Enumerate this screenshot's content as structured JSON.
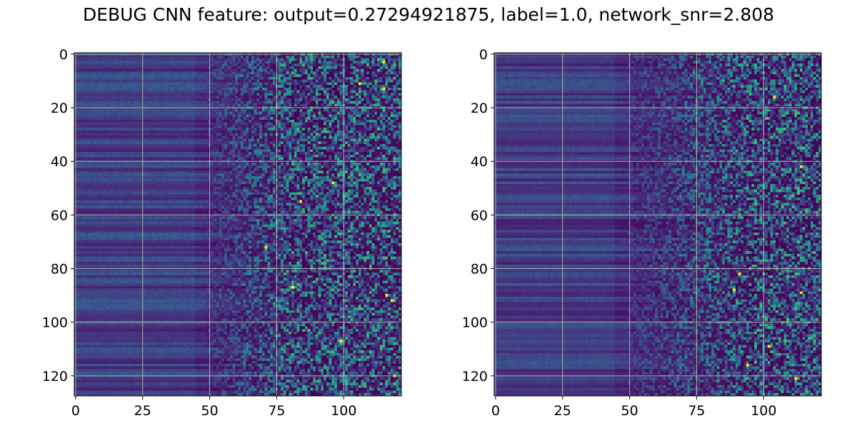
{
  "figure": {
    "title": "DEBUG CNN feature: output=0.27294921875, label=1.0, network_snr=2.808"
  },
  "colormap": {
    "name": "viridis",
    "stops": [
      "#440154",
      "#472d7b",
      "#3b528b",
      "#2c728e",
      "#21918c",
      "#28ae80",
      "#5ec962",
      "#addc30",
      "#fde725"
    ]
  },
  "chart_data": [
    {
      "type": "heatmap",
      "panel": "left",
      "colormap": "viridis",
      "n_rows": 128,
      "n_cols": 122,
      "x_lim": [
        -0.5,
        121.5
      ],
      "y_lim": [
        127.5,
        -0.5
      ],
      "x_ticks": [
        0,
        25,
        50,
        75,
        100
      ],
      "y_ticks": [
        0,
        20,
        40,
        60,
        80,
        100,
        120
      ],
      "grid": true,
      "grid_color": "#b0b0b0",
      "title": "",
      "xlabel": "",
      "ylabel": "",
      "description_of_values": "Low-intensity horizontally banded region for columns 0-50; sparse bright speckles increasing toward columns 70-121.",
      "bright_points": [
        {
          "x": 115,
          "y": 3
        },
        {
          "x": 115,
          "y": 13
        },
        {
          "x": 106,
          "y": 11
        },
        {
          "x": 96,
          "y": 48
        },
        {
          "x": 84,
          "y": 55
        },
        {
          "x": 71,
          "y": 72
        },
        {
          "x": 81,
          "y": 87
        },
        {
          "x": 116,
          "y": 90
        },
        {
          "x": 118,
          "y": 92
        },
        {
          "x": 99,
          "y": 107
        },
        {
          "x": 119,
          "y": 120
        }
      ]
    },
    {
      "type": "heatmap",
      "panel": "right",
      "colormap": "viridis",
      "n_rows": 128,
      "n_cols": 122,
      "x_lim": [
        -0.5,
        121.5
      ],
      "y_lim": [
        127.5,
        -0.5
      ],
      "x_ticks": [
        0,
        25,
        50,
        75,
        100
      ],
      "y_ticks": [
        0,
        20,
        40,
        60,
        80,
        100,
        120
      ],
      "grid": true,
      "grid_color": "#b0b0b0",
      "title": "",
      "xlabel": "",
      "ylabel": "",
      "description_of_values": "Low-intensity horizontally banded region for columns 0-50; sparse bright speckles concentrated in columns 85-121.",
      "bright_points": [
        {
          "x": 114,
          "y": 42
        },
        {
          "x": 89,
          "y": 88
        },
        {
          "x": 91,
          "y": 82
        },
        {
          "x": 114,
          "y": 89
        },
        {
          "x": 94,
          "y": 116
        },
        {
          "x": 102,
          "y": 109
        },
        {
          "x": 104,
          "y": 16
        },
        {
          "x": 112,
          "y": 121
        }
      ]
    }
  ]
}
